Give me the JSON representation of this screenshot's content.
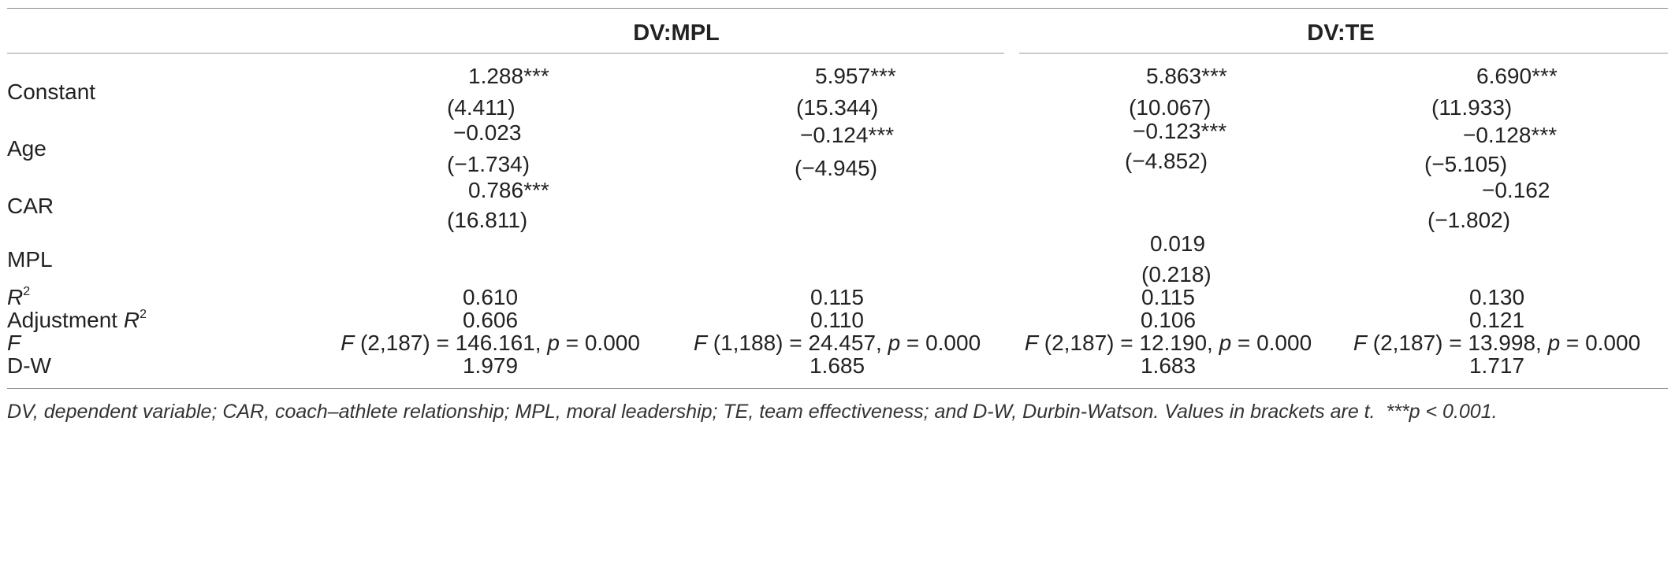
{
  "table": {
    "group_headers": [
      "DV:MPL",
      "DV:TE"
    ],
    "rows": {
      "constant": {
        "label": "Constant",
        "coef": [
          "1.288***",
          "5.957***",
          "5.863***",
          "6.690***"
        ],
        "t": [
          "(4.411)",
          "(15.344)",
          "(10.067)",
          "(11.933)"
        ]
      },
      "age": {
        "label": "Age",
        "coef": [
          "−0.023",
          "−0.124***",
          "−0.123***",
          "−0.128***"
        ],
        "t": [
          "(−1.734)",
          "(−4.945)",
          "(−4.852)",
          "(−5.105)"
        ]
      },
      "car": {
        "label": "CAR",
        "coef": [
          "0.786***",
          "",
          "",
          "−0.162"
        ],
        "t": [
          "(16.811)",
          "",
          "",
          "(−1.802)"
        ]
      },
      "mpl": {
        "label": "MPL",
        "coef": [
          "",
          "",
          "0.019",
          ""
        ],
        "t": [
          "",
          "",
          "(0.218)",
          ""
        ]
      }
    },
    "r2": {
      "label": "R",
      "label_sup": "2",
      "values": [
        "0.610",
        "0.115",
        "0.115",
        "0.130"
      ]
    },
    "adj_r2": {
      "label": "Adjustment ",
      "label_italic": "R",
      "label_sup": "2",
      "values": [
        "0.606",
        "0.110",
        "0.106",
        "0.121"
      ]
    },
    "f": {
      "label": "F",
      "values": [
        {
          "df": "(2,187) = 146.161, ",
          "p": " = 0.000"
        },
        {
          "df": "(1,188) = 24.457, ",
          "p": " = 0.000"
        },
        {
          "df": "(2,187) = 12.190, ",
          "p": " = 0.000"
        },
        {
          "df": "(2,187) = 13.998, ",
          "p": " = 0.000"
        }
      ],
      "f_symbol": "F",
      "p_symbol": "p"
    },
    "dw": {
      "label": "D-W",
      "values": [
        "1.979",
        "1.685",
        "1.683",
        "1.717"
      ]
    }
  },
  "footnote": {
    "text": "DV, dependent variable; CAR, coach–athlete relationship; MPL, moral leadership; TE, team effectiveness; and D-W, Durbin-Watson. Values in brackets are t.",
    "sig": "***p < 0.001."
  }
}
